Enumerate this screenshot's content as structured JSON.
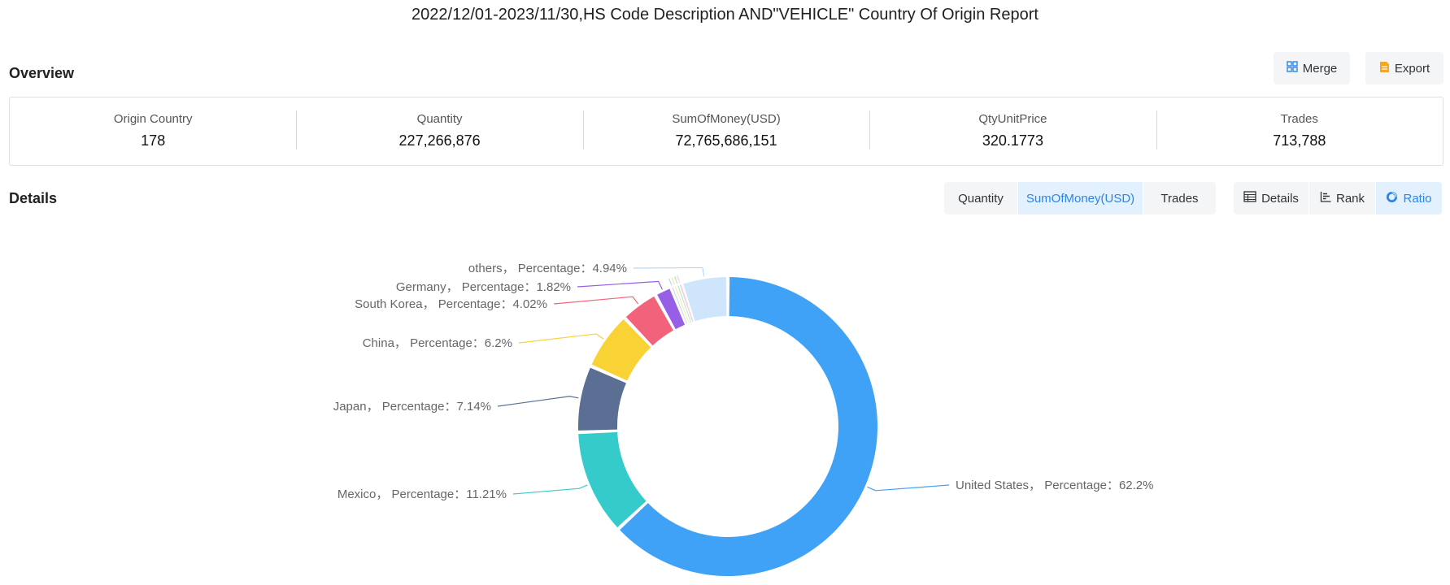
{
  "report": {
    "title": "2022/12/01-2023/11/30,HS Code Description AND\"VEHICLE\" Country Of Origin Report"
  },
  "overview": {
    "title": "Overview",
    "merge_label": "Merge",
    "export_label": "Export",
    "stats": [
      {
        "label": "Origin Country",
        "value": "178"
      },
      {
        "label": "Quantity",
        "value": "227,266,876"
      },
      {
        "label": "SumOfMoney(USD)",
        "value": "72,765,686,151"
      },
      {
        "label": "QtyUnitPrice",
        "value": "320.1773"
      },
      {
        "label": "Trades",
        "value": "713,788"
      }
    ]
  },
  "details": {
    "title": "Details",
    "metric_tabs": [
      "Quantity",
      "SumOfMoney(USD)",
      "Trades"
    ],
    "active_metric": "SumOfMoney(USD)",
    "view_tabs": [
      "Details",
      "Rank",
      "Ratio"
    ],
    "active_view": "Ratio"
  },
  "colors": {
    "accent": "#2b86e8",
    "active_bg": "#e3f0fd",
    "button_bg": "#f4f5f7",
    "border": "#dcdfe6"
  },
  "chart_data": {
    "type": "pie",
    "donut": true,
    "label_format": "{name}， Percentage：{value}%",
    "slices": [
      {
        "name": "United States",
        "value": 62.2,
        "color": "#3fa2f7"
      },
      {
        "name": "Mexico",
        "value": 11.21,
        "color": "#36cbcb"
      },
      {
        "name": "Japan",
        "value": 7.14,
        "color": "#5b6e94"
      },
      {
        "name": "China",
        "value": 6.2,
        "color": "#f9d336"
      },
      {
        "name": "South Korea",
        "value": 4.02,
        "color": "#f2637b"
      },
      {
        "name": "Germany",
        "value": 1.82,
        "color": "#975fe5"
      },
      {
        "name": "",
        "value": 0.3,
        "color": "#a8d8f5"
      },
      {
        "name": "",
        "value": 0.3,
        "color": "#f8e2a0"
      },
      {
        "name": "",
        "value": 0.3,
        "color": "#9fe6b8"
      },
      {
        "name": "",
        "value": 0.25,
        "color": "#ffc3d0"
      },
      {
        "name": "others",
        "value": 4.94,
        "color": "#cfe5fb"
      }
    ]
  }
}
